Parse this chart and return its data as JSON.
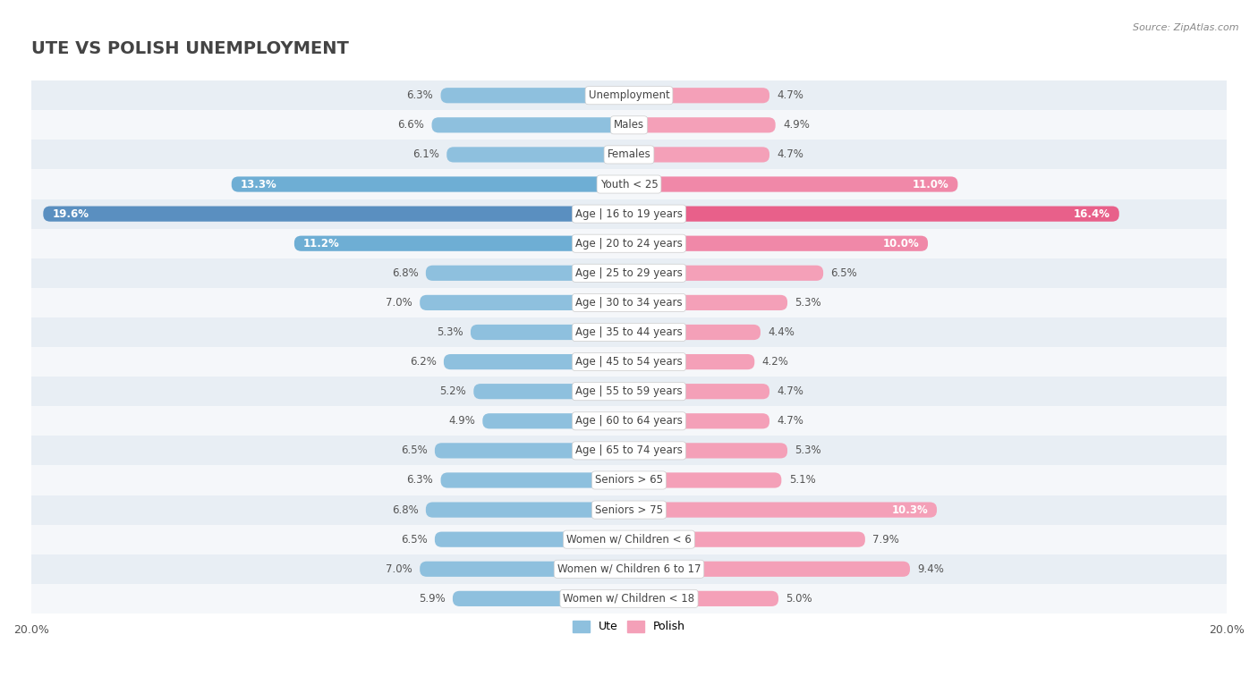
{
  "title": "UTE VS POLISH UNEMPLOYMENT",
  "source": "Source: ZipAtlas.com",
  "categories": [
    "Unemployment",
    "Males",
    "Females",
    "Youth < 25",
    "Age | 16 to 19 years",
    "Age | 20 to 24 years",
    "Age | 25 to 29 years",
    "Age | 30 to 34 years",
    "Age | 35 to 44 years",
    "Age | 45 to 54 years",
    "Age | 55 to 59 years",
    "Age | 60 to 64 years",
    "Age | 65 to 74 years",
    "Seniors > 65",
    "Seniors > 75",
    "Women w/ Children < 6",
    "Women w/ Children 6 to 17",
    "Women w/ Children < 18"
  ],
  "ute_values": [
    6.3,
    6.6,
    6.1,
    13.3,
    19.6,
    11.2,
    6.8,
    7.0,
    5.3,
    6.2,
    5.2,
    4.9,
    6.5,
    6.3,
    6.8,
    6.5,
    7.0,
    5.9
  ],
  "polish_values": [
    4.7,
    4.9,
    4.7,
    11.0,
    16.4,
    10.0,
    6.5,
    5.3,
    4.4,
    4.2,
    4.7,
    4.7,
    5.3,
    5.1,
    10.3,
    7.9,
    9.4,
    5.0
  ],
  "ute_color": "#8ec0de",
  "polish_color": "#f4a0b8",
  "ute_highlight_color": "#5a8fc0",
  "polish_highlight_color": "#e8608a",
  "axis_max": 20.0,
  "bg_color": "#ffffff",
  "row_even_color": "#e8eef4",
  "row_odd_color": "#f5f7fa",
  "bar_height": 0.52,
  "title_fontsize": 14,
  "label_fontsize": 8.5,
  "tick_fontsize": 9,
  "value_inside_threshold": 3.0
}
